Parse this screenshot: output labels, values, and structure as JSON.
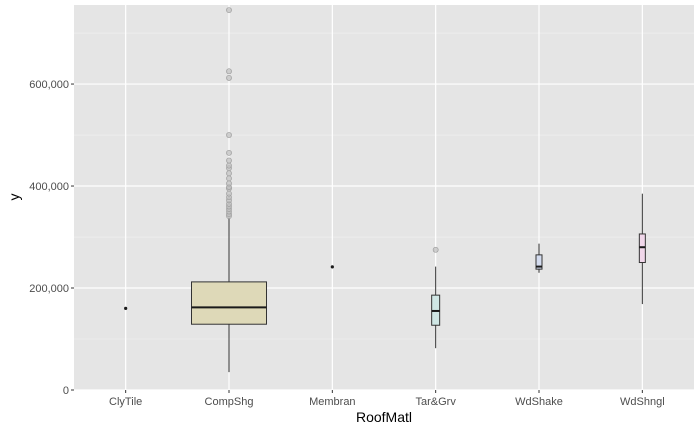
{
  "chart_data": {
    "type": "boxplot",
    "xlabel": "RoofMatl",
    "ylabel": "y",
    "ylim": [
      0,
      755000
    ],
    "y_ticks": [
      0,
      200000,
      400000,
      600000
    ],
    "y_tick_labels": [
      "0",
      "200,000",
      "400,000",
      "600,000"
    ],
    "grid": true,
    "categories": [
      "ClyTile",
      "CompShg",
      "Membran",
      "Tar&Grv",
      "WdShake",
      "WdShngl"
    ],
    "boxes": [
      {
        "category": "ClyTile",
        "min": 160000,
        "q1": 160000,
        "median": 160000,
        "q3": 160000,
        "max": 160000,
        "outliers": [],
        "fill": "#f8e6e0"
      },
      {
        "category": "CompShg",
        "min": 35000,
        "q1": 129000,
        "median": 162000,
        "q3": 212000,
        "max": 338000,
        "outliers": [
          341000,
          345000,
          350000,
          355000,
          360000,
          365000,
          372000,
          378000,
          385000,
          395000,
          398000,
          405000,
          415000,
          425000,
          435000,
          440000,
          450000,
          465000,
          500000,
          612000,
          625000,
          745000
        ],
        "fill": "#ded9b8"
      },
      {
        "category": "Membran",
        "min": 241500,
        "q1": 241500,
        "median": 241500,
        "q3": 241500,
        "max": 241500,
        "outliers": [],
        "fill": "#dfe6cf"
      },
      {
        "category": "Tar&Grv",
        "min": 82000,
        "q1": 127000,
        "median": 155000,
        "q3": 186000,
        "max": 242000,
        "outliers": [
          274970
        ],
        "fill": "#cfe6e4"
      },
      {
        "category": "WdShake",
        "min": 230000,
        "q1": 237000,
        "median": 242000,
        "q3": 265000,
        "max": 287000,
        "outliers": [],
        "fill": "#d4dcef"
      },
      {
        "category": "WdShngl",
        "min": 168500,
        "q1": 250000,
        "median": 280000,
        "q3": 306000,
        "max": 385000,
        "outliers": [],
        "fill": "#f1d7ea"
      }
    ]
  },
  "colors": {
    "panel_background": "#e5e5e5",
    "grid_major": "#ffffff",
    "grid_minor": "#f2f2f2",
    "box_outline": "#333333",
    "outlier": "#bdbdbd"
  }
}
